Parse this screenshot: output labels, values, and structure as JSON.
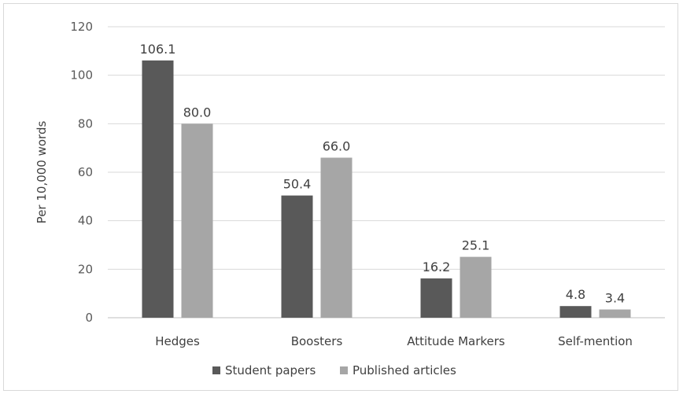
{
  "chart_data": {
    "type": "bar",
    "title": "",
    "xlabel": "",
    "ylabel": "Per 10,000 words",
    "ylim": [
      0,
      120
    ],
    "yticks": [
      0,
      20,
      40,
      60,
      80,
      100,
      120
    ],
    "grid": true,
    "legend_position": "bottom",
    "categories": [
      "Hedges",
      "Boosters",
      "Attitude Markers",
      "Self-mention"
    ],
    "series": [
      {
        "name": "Student papers",
        "color": "#595959",
        "values": [
          106.1,
          50.4,
          16.2,
          4.8
        ],
        "labels": [
          "106.1",
          "50.4",
          "16.2",
          "4.8"
        ]
      },
      {
        "name": "Published articles",
        "color": "#a6a6a6",
        "values": [
          80.0,
          66.0,
          25.1,
          3.4
        ],
        "labels": [
          "80.0",
          "66.0",
          "25.1",
          "3.4"
        ]
      }
    ]
  }
}
